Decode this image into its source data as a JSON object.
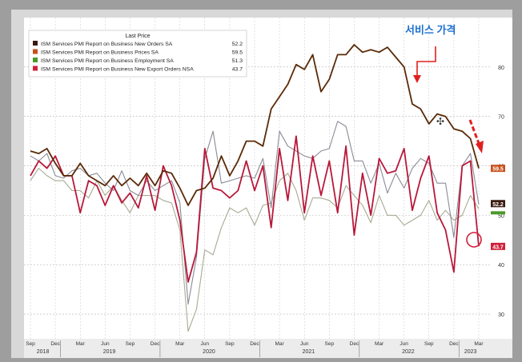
{
  "annotation": {
    "label": "서비스 가격",
    "color": "#1a6fd1",
    "arrow_color": "#e02020"
  },
  "chart_data": {
    "type": "line",
    "legend": {
      "title": "Last Price",
      "placement": "top-left",
      "entries": [
        {
          "name": "ISM Services PMI Report on Business New Orders SA",
          "value": "52.2",
          "color": "#3a1a10"
        },
        {
          "name": "ISM Services PMI Report on Business Prices SA",
          "value": "59.5",
          "color": "#c8501a"
        },
        {
          "name": "ISM Services PMI Report on Business Employment SA",
          "value": "51.3",
          "color": "#4a9a2a"
        },
        {
          "name": "ISM Services PMI Report on Business New Export Orders NSA",
          "value": "43.7",
          "color": "#d0203a"
        }
      ]
    },
    "x": [
      "2018-09",
      "2018-10",
      "2018-11",
      "2018-12",
      "2019-01",
      "2019-02",
      "2019-03",
      "2019-04",
      "2019-05",
      "2019-06",
      "2019-07",
      "2019-08",
      "2019-09",
      "2019-10",
      "2019-11",
      "2019-12",
      "2020-01",
      "2020-02",
      "2020-03",
      "2020-04",
      "2020-05",
      "2020-06",
      "2020-07",
      "2020-08",
      "2020-09",
      "2020-10",
      "2020-11",
      "2020-12",
      "2021-01",
      "2021-02",
      "2021-03",
      "2021-04",
      "2021-05",
      "2021-06",
      "2021-07",
      "2021-08",
      "2021-09",
      "2021-10",
      "2021-11",
      "2021-12",
      "2022-01",
      "2022-02",
      "2022-03",
      "2022-04",
      "2022-05",
      "2022-06",
      "2022-07",
      "2022-08",
      "2022-09",
      "2022-10",
      "2022-11",
      "2022-12",
      "2023-01",
      "2023-02",
      "2023-03"
    ],
    "x_month_labels": [
      "Sep",
      "Dec",
      "Mar",
      "Jun",
      "Sep",
      "Dec",
      "Mar",
      "Jun",
      "Sep",
      "Dec",
      "Mar",
      "Jun",
      "Sep",
      "Dec",
      "Mar",
      "Jun",
      "Sep",
      "Dec",
      "Mar"
    ],
    "x_year_labels": [
      "2018",
      "2019",
      "2020",
      "2021",
      "2022",
      "2023"
    ],
    "ylim": [
      25,
      90
    ],
    "yticks": [
      30,
      40,
      50,
      60,
      70,
      80
    ],
    "grid": true,
    "series": [
      {
        "name": "ISM Services PMI Report on Business Prices SA",
        "color": "#5a2a08",
        "values": [
          63.0,
          62.5,
          63.5,
          60.5,
          58.0,
          58.0,
          60.5,
          58.0,
          57.0,
          56.0,
          58.0,
          56.0,
          57.5,
          56.0,
          58.5,
          56.0,
          59.0,
          58.5,
          55.5,
          52.0,
          55.0,
          55.5,
          57.5,
          62.0,
          58.0,
          61.0,
          65.0,
          65.0,
          64.0,
          71.5,
          74.0,
          76.5,
          80.5,
          79.5,
          82.5,
          75.0,
          77.5,
          82.5,
          82.5,
          84.5,
          83.0,
          83.5,
          83.0,
          84.0,
          82.0,
          80.0,
          72.5,
          71.5,
          68.5,
          70.5,
          70.0,
          67.5,
          67.0,
          65.5,
          59.5
        ]
      },
      {
        "name": "ISM Services PMI Report on Business New Orders SA",
        "color": "#8a8a96",
        "values": [
          62.0,
          61.0,
          62.5,
          58.0,
          57.5,
          59.0,
          59.5,
          58.0,
          58.5,
          56.5,
          55.0,
          59.0,
          55.0,
          54.0,
          57.0,
          55.0,
          56.0,
          57.0,
          52.5,
          32.0,
          41.5,
          61.5,
          67.0,
          56.5,
          57.0,
          57.5,
          58.0,
          57.5,
          61.5,
          51.5,
          67.0,
          64.0,
          63.0,
          62.0,
          61.5,
          63.0,
          63.5,
          69.0,
          68.0,
          61.0,
          61.0,
          56.5,
          60.5,
          54.5,
          58.5,
          55.5,
          59.5,
          61.5,
          60.5,
          56.5,
          56.5,
          45.5,
          60.0,
          62.5,
          52.2
        ]
      },
      {
        "name": "ISM Services PMI Report on Business Employment SA",
        "color": "#a8aa92",
        "values": [
          57.0,
          59.5,
          58.0,
          57.0,
          57.0,
          55.0,
          55.0,
          53.5,
          57.0,
          54.0,
          56.0,
          53.0,
          50.5,
          54.0,
          54.0,
          54.0,
          53.0,
          52.5,
          47.0,
          26.5,
          31.0,
          43.0,
          42.0,
          47.5,
          51.5,
          50.5,
          51.5,
          48.0,
          52.0,
          52.5,
          57.0,
          58.5,
          55.0,
          49.0,
          53.5,
          53.5,
          53.0,
          51.5,
          56.0,
          54.0,
          52.0,
          48.5,
          54.0,
          50.0,
          50.0,
          48.0,
          49.0,
          50.0,
          53.0,
          49.0,
          51.0,
          49.0,
          50.0,
          54.0,
          51.3
        ]
      },
      {
        "name": "ISM Services PMI Report on Business New Export Orders NSA",
        "color": "#b8183a",
        "values": [
          58.0,
          61.0,
          59.5,
          62.0,
          58.0,
          58.0,
          50.5,
          57.0,
          56.0,
          52.0,
          56.0,
          52.5,
          54.5,
          51.5,
          58.0,
          51.0,
          60.0,
          56.0,
          49.0,
          36.5,
          42.5,
          63.5,
          55.5,
          55.0,
          53.5,
          55.0,
          61.0,
          55.0,
          60.0,
          47.5,
          63.5,
          53.0,
          66.0,
          50.5,
          62.0,
          54.0,
          61.0,
          50.5,
          64.0,
          46.0,
          58.5,
          50.0,
          61.5,
          58.5,
          59.0,
          63.5,
          51.0,
          57.5,
          62.0,
          50.5,
          47.0,
          38.5,
          60.0,
          61.0,
          43.7
        ]
      }
    ],
    "last_value_tags": [
      {
        "value": "59.5",
        "color": "#c8501a"
      },
      {
        "value": "52.2",
        "color": "#3a1a10"
      },
      {
        "value": "51.3",
        "color": "#4a9a2a"
      },
      {
        "value": "43.7",
        "color": "#d0203a"
      }
    ]
  }
}
